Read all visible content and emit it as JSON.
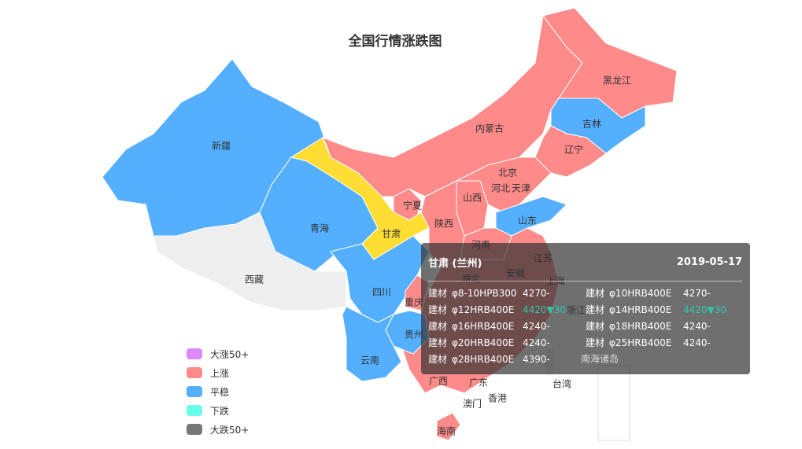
{
  "title": "全国行情涨跌图",
  "colors": {
    "up_big": "#DD88FF",
    "up": "#FF8A8A",
    "stable": "#54B0FF",
    "down": "#66FFE6",
    "down_big": "#777777",
    "no_data": "#EEEEEE",
    "highlight": "#FFDD33"
  },
  "legend": [
    {
      "label": "大涨50+",
      "color": "#DD88FF"
    },
    {
      "label": "上涨",
      "color": "#FF8A8A"
    },
    {
      "label": "平稳",
      "color": "#54B0FF"
    },
    {
      "label": "下跌",
      "color": "#66FFE6"
    },
    {
      "label": "大跌50+",
      "color": "#777777"
    }
  ],
  "provinces": {
    "xinjiang": {
      "name": "新疆",
      "status": "stable"
    },
    "xizang": {
      "name": "西藏",
      "status": "none"
    },
    "qinghai": {
      "name": "青海",
      "status": "stable"
    },
    "gansu": {
      "name": "甘肃",
      "status": "highlight"
    },
    "neimenggu": {
      "name": "内蒙古",
      "status": "up"
    },
    "heilongjiang": {
      "name": "黑龙江",
      "status": "up"
    },
    "jilin": {
      "name": "吉林",
      "status": "stable"
    },
    "liaoning": {
      "name": "辽宁",
      "status": "up"
    },
    "beijing": {
      "name": "北京",
      "status": "up"
    },
    "tianjin": {
      "name": "天津",
      "status": "up"
    },
    "hebei": {
      "name": "河北",
      "status": "up"
    },
    "shanxi": {
      "name": "山西",
      "status": "up"
    },
    "shaanxi": {
      "name": "陕西",
      "status": "up"
    },
    "ningxia": {
      "name": "宁夏",
      "status": "up"
    },
    "shandong": {
      "name": "山东",
      "status": "stable"
    },
    "henan": {
      "name": "河南",
      "status": "up"
    },
    "jiangsu": {
      "name": "江苏",
      "status": "up"
    },
    "anhui": {
      "name": "安徽",
      "status": "up"
    },
    "shanghai": {
      "name": "上海",
      "status": "up"
    },
    "hubei": {
      "name": "湖北",
      "status": "up"
    },
    "zhejiang": {
      "name": "浙江",
      "status": "up"
    },
    "sichuan": {
      "name": "四川",
      "status": "stable"
    },
    "chongqing": {
      "name": "重庆",
      "status": "up"
    },
    "guizhou": {
      "name": "贵州",
      "status": "stable"
    },
    "yunnan": {
      "name": "云南",
      "status": "stable"
    },
    "guangxi": {
      "name": "广西",
      "status": "up"
    },
    "guangdong": {
      "name": "广东",
      "status": "up"
    },
    "hainan": {
      "name": "海南",
      "status": "up"
    },
    "taiwan": {
      "name": "台湾",
      "status": "none"
    },
    "xianggang": {
      "name": "香港",
      "status": "none"
    },
    "aomen": {
      "name": "澳门",
      "status": "none"
    },
    "nanhai": {
      "name": "南海诸岛",
      "status": "none"
    }
  },
  "tooltip": {
    "region": "甘肃 (兰州)",
    "date": "2019-05-17",
    "items": [
      {
        "cat": "建材",
        "spec": "φ8-10HPB300",
        "price": "4270-",
        "trend": "flat"
      },
      {
        "cat": "建材",
        "spec": "φ10HRB400E",
        "price": "4270-",
        "trend": "flat"
      },
      {
        "cat": "建材",
        "spec": "φ12HRB400E",
        "price": "4420▼30",
        "trend": "down"
      },
      {
        "cat": "建材",
        "spec": "φ14HRB400E",
        "price": "4420▼30",
        "trend": "down"
      },
      {
        "cat": "建材",
        "spec": "φ16HRB400E",
        "price": "4240-",
        "trend": "flat"
      },
      {
        "cat": "建材",
        "spec": "φ18HRB400E",
        "price": "4240-",
        "trend": "flat"
      },
      {
        "cat": "建材",
        "spec": "φ20HRB400E",
        "price": "4240-",
        "trend": "flat"
      },
      {
        "cat": "建材",
        "spec": "φ25HRB400E",
        "price": "4240-",
        "trend": "flat"
      },
      {
        "cat": "建材",
        "spec": "φ28HRB400E",
        "price": "4390-",
        "trend": "flat"
      }
    ]
  }
}
